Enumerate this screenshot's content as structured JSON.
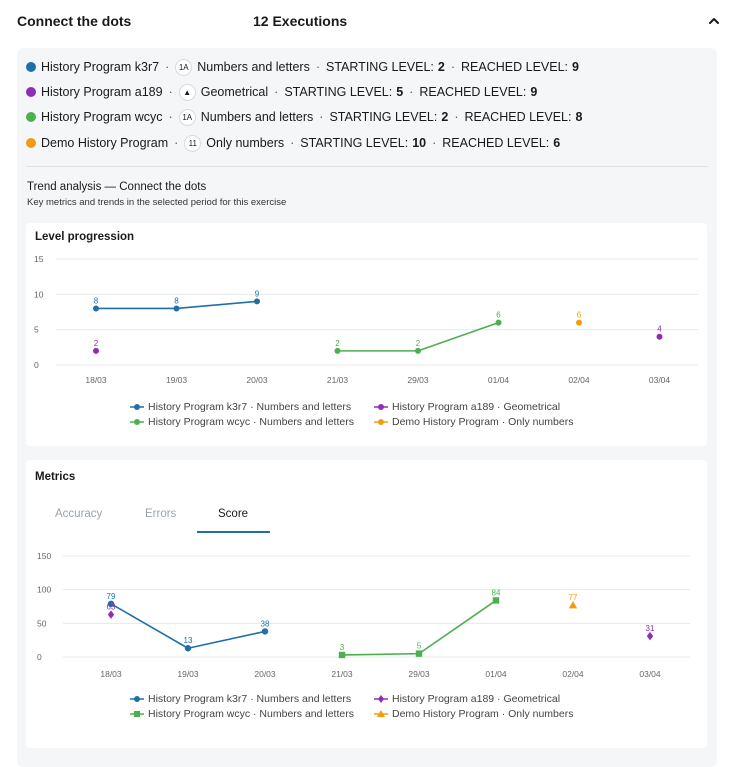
{
  "header": {
    "title": "Connect the dots",
    "executions": "12 Executions"
  },
  "colors": {
    "blue": "#1f6fa8",
    "purple": "#8e2fb3",
    "green": "#4caf50",
    "orange": "#f39c12"
  },
  "programs": [
    {
      "name": "History Program k3r7",
      "color": "#1f6fa8",
      "category": "Numbers and letters",
      "icon": "numbers-letters-icon",
      "starting_label": "STARTING LEVEL:",
      "starting": "2",
      "reached_label": "REACHED LEVEL:",
      "reached": "9"
    },
    {
      "name": "History Program a189",
      "color": "#8e2fb3",
      "category": "Geometrical",
      "icon": "shapes-icon",
      "starting_label": "STARTING LEVEL:",
      "starting": "5",
      "reached_label": "REACHED LEVEL:",
      "reached": "9"
    },
    {
      "name": "History Program wcyc",
      "color": "#4caf50",
      "category": "Numbers and letters",
      "icon": "numbers-letters-icon",
      "starting_label": "STARTING LEVEL:",
      "starting": "2",
      "reached_label": "REACHED LEVEL:",
      "reached": "8"
    },
    {
      "name": "Demo History Program",
      "color": "#f39c12",
      "category": "Only numbers",
      "icon": "numbers-icon",
      "starting_label": "STARTING LEVEL:",
      "starting": "10",
      "reached_label": "REACHED LEVEL:",
      "reached": "6"
    }
  ],
  "trend": {
    "title": "Trend analysis — Connect the dots",
    "subtitle": "Key metrics and trends in the selected period for this exercise"
  },
  "metrics": {
    "title": "Metrics",
    "tabs": [
      "Accuracy",
      "Errors",
      "Score"
    ],
    "active_tab": "Score"
  },
  "chart_data": [
    {
      "type": "line",
      "title": "Level progression",
      "categories": [
        "18/03",
        "19/03",
        "20/03",
        "21/03",
        "29/03",
        "01/04",
        "02/04",
        "03/04"
      ],
      "ylim": [
        0,
        15
      ],
      "yticks": [
        0,
        5,
        10,
        15
      ],
      "grid": true,
      "legend": "bottom",
      "series": [
        {
          "name": "History Program k3r7 · Numbers and letters",
          "color": "#1f6fa8",
          "marker": "circle",
          "values": [
            8,
            8,
            9,
            null,
            null,
            null,
            null,
            null
          ]
        },
        {
          "name": "History Program a189 · Geometrical",
          "color": "#8e2fb3",
          "marker": "circle",
          "values": [
            2,
            null,
            null,
            null,
            null,
            null,
            null,
            4
          ]
        },
        {
          "name": "History Program wcyc · Numbers and letters",
          "color": "#4caf50",
          "marker": "circle",
          "values": [
            null,
            null,
            null,
            2,
            2,
            6,
            null,
            null
          ]
        },
        {
          "name": "Demo History Program · Only numbers",
          "color": "#f39c12",
          "marker": "circle",
          "values": [
            null,
            null,
            null,
            null,
            null,
            null,
            6,
            null
          ]
        }
      ]
    },
    {
      "type": "line",
      "title": "Score",
      "categories": [
        "18/03",
        "19/03",
        "20/03",
        "21/03",
        "29/03",
        "01/04",
        "02/04",
        "03/04"
      ],
      "ylim": [
        0,
        150
      ],
      "yticks": [
        0,
        50,
        100,
        150
      ],
      "grid": true,
      "legend": "bottom",
      "series": [
        {
          "name": "History Program k3r7 · Numbers and letters",
          "color": "#1f6fa8",
          "marker": "circle",
          "values": [
            79,
            13,
            38,
            null,
            null,
            null,
            null,
            null
          ]
        },
        {
          "name": "History Program a189 · Geometrical",
          "color": "#8e2fb3",
          "marker": "diamond",
          "values": [
            63,
            null,
            null,
            null,
            null,
            null,
            null,
            31
          ]
        },
        {
          "name": "History Program wcyc · Numbers and letters",
          "color": "#4caf50",
          "marker": "square",
          "values": [
            null,
            null,
            null,
            3,
            5,
            84,
            null,
            null
          ]
        },
        {
          "name": "Demo History Program · Only numbers",
          "color": "#f39c12",
          "marker": "triangle",
          "values": [
            null,
            null,
            null,
            null,
            null,
            null,
            77,
            null
          ]
        }
      ]
    }
  ]
}
